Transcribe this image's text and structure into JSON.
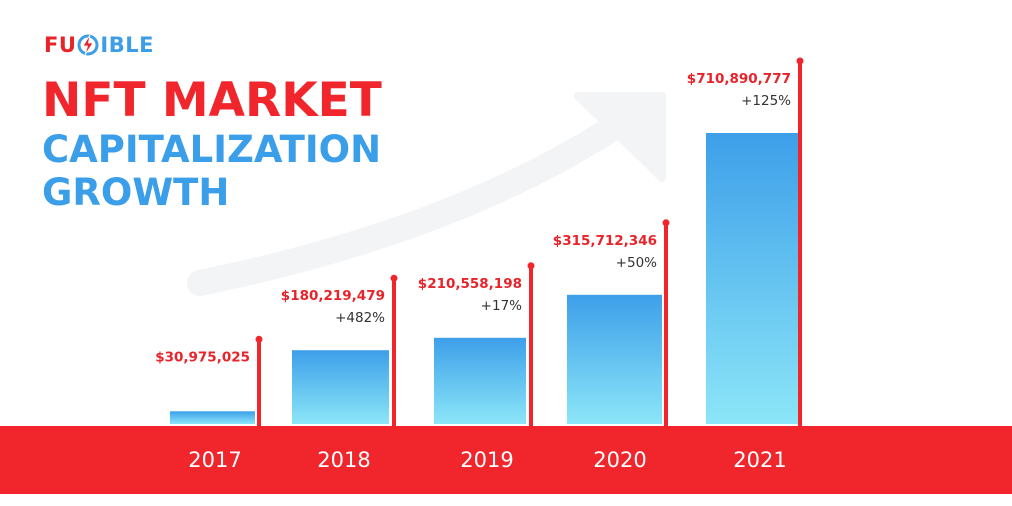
{
  "brand": {
    "logo_left": "FU",
    "logo_right": "IBLE",
    "logo_glyph": "lightning-s-icon"
  },
  "title": {
    "line1": "NFT MARKET",
    "line2": "CAPITALIZATION",
    "line3": "GROWTH"
  },
  "colors": {
    "red": "#f0262c",
    "blue": "#3b9ee9",
    "bar_top": "#3d9fe9",
    "bar_bottom": "#8ce6f8",
    "arrow": "#f3f4f6"
  },
  "chart_data": {
    "type": "bar",
    "categories": [
      "2017",
      "2018",
      "2019",
      "2020",
      "2021"
    ],
    "values": [
      30975025,
      180219479,
      210558198,
      315712346,
      710890777
    ],
    "value_labels": [
      "$30,975,025",
      "$180,219,479",
      "$210,558,198",
      "$315,712,346",
      "$710,890,777"
    ],
    "growth_labels": [
      "",
      "+482%",
      "+17%",
      "+50%",
      "+125%"
    ],
    "title": "NFT MARKET CAPITALIZATION GROWTH",
    "xlabel": "",
    "ylabel": "",
    "grid": false,
    "legend": "none"
  }
}
